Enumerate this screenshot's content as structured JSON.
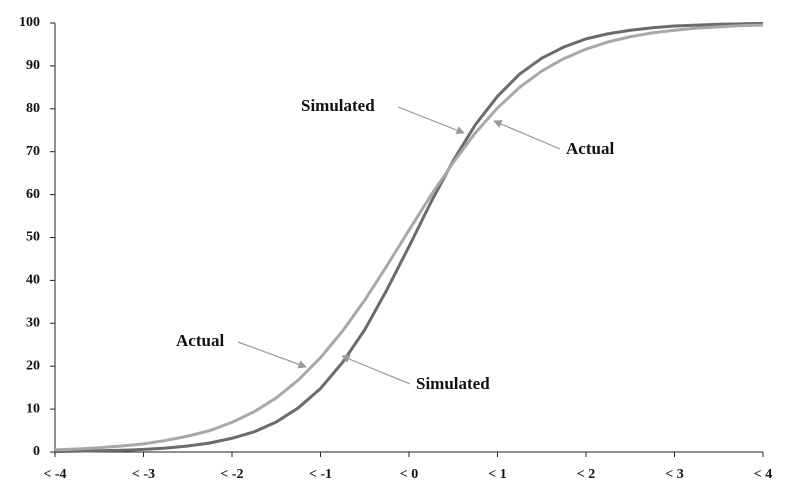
{
  "chart_data": {
    "type": "line",
    "x": [
      -4,
      -3.75,
      -3.5,
      -3.25,
      -3,
      -2.75,
      -2.5,
      -2.25,
      -2,
      -1.75,
      -1.5,
      -1.25,
      -1,
      -0.75,
      -0.5,
      -0.25,
      0,
      0.25,
      0.5,
      0.75,
      1,
      1.25,
      1.5,
      1.75,
      2,
      2.25,
      2.5,
      2.75,
      3,
      3.25,
      3.5,
      3.75,
      4
    ],
    "series": [
      {
        "name": "Simulated",
        "color": "#6b6b6e",
        "values": [
          0.1,
          0.2,
          0.3,
          0.4,
          0.6,
          0.9,
          1.4,
          2.1,
          3.2,
          4.7,
          7.0,
          10.3,
          14.8,
          20.9,
          28.5,
          37.8,
          47.9,
          58.3,
          67.9,
          76.3,
          82.9,
          88.1,
          91.8,
          94.4,
          96.3,
          97.5,
          98.3,
          98.9,
          99.3,
          99.5,
          99.7,
          99.8,
          99.9
        ]
      },
      {
        "name": "Actual",
        "color": "#a8a8a8",
        "values": [
          0.5,
          0.7,
          1.0,
          1.4,
          1.9,
          2.7,
          3.7,
          5.0,
          6.9,
          9.4,
          12.6,
          16.8,
          22.0,
          28.2,
          35.4,
          43.4,
          51.7,
          59.9,
          67.5,
          74.4,
          80.2,
          85.0,
          88.8,
          91.7,
          93.9,
          95.6,
          96.8,
          97.7,
          98.3,
          98.8,
          99.1,
          99.4,
          99.5
        ]
      }
    ],
    "xlim": [
      -4,
      4
    ],
    "xticks": [
      {
        "value": -4,
        "label": "< -4"
      },
      {
        "value": -3,
        "label": "< -3"
      },
      {
        "value": -2,
        "label": "< -2"
      },
      {
        "value": -1,
        "label": "< -1"
      },
      {
        "value": 0,
        "label": "< 0"
      },
      {
        "value": 1,
        "label": "< 1"
      },
      {
        "value": 2,
        "label": "< 2"
      },
      {
        "value": 3,
        "label": "< 3"
      },
      {
        "value": 4,
        "label": "< 4"
      }
    ],
    "ylim": [
      0,
      100
    ],
    "yticks": [
      0,
      10,
      20,
      30,
      40,
      50,
      60,
      70,
      80,
      90,
      100
    ],
    "grid": false
  }
}
